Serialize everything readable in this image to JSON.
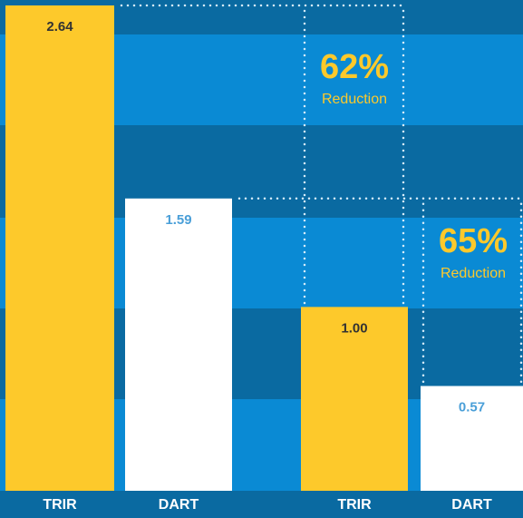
{
  "chart_data": {
    "type": "bar",
    "categories": [
      "TRIR",
      "DART",
      "TRIR",
      "DART"
    ],
    "values": [
      2.64,
      1.59,
      1.0,
      0.57
    ],
    "value_labels": [
      "2.64",
      "1.59",
      "1.00",
      "0.57"
    ],
    "colors": [
      "#fdc92b",
      "#ffffff",
      "#fdc92b",
      "#ffffff"
    ],
    "annotations": [
      {
        "text": "62%",
        "subtext": "Reduction"
      },
      {
        "text": "65%",
        "subtext": "Reduction"
      }
    ]
  }
}
